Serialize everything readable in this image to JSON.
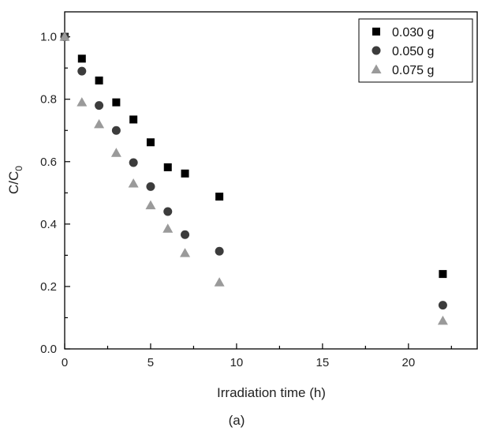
{
  "chart_data": {
    "type": "scatter",
    "xlabel": "Irradiation time (h)",
    "ylabel_main": "C/C",
    "ylabel_sub": "0",
    "caption": "(a)",
    "xlim": [
      0,
      24
    ],
    "ylim": [
      0,
      1.08
    ],
    "x_ticks": [
      0,
      5,
      10,
      15,
      20
    ],
    "x_tick_labels": [
      "0",
      "5",
      "10",
      "15",
      "20"
    ],
    "y_ticks": [
      0,
      0.2,
      0.4,
      0.6,
      0.8,
      1.0
    ],
    "y_tick_labels": [
      "0.0",
      "0.2",
      "0.4",
      "0.6",
      "0.8",
      "1.0"
    ],
    "grid": false,
    "legend_position": "top-right",
    "series": [
      {
        "name": "0.030 g",
        "marker": "square",
        "color": "#000000",
        "x": [
          0,
          1,
          2,
          3,
          4,
          5,
          6,
          7,
          9,
          22
        ],
        "y": [
          1.0,
          0.93,
          0.86,
          0.79,
          0.735,
          0.662,
          0.582,
          0.562,
          0.488,
          0.24
        ]
      },
      {
        "name": "0.050 g",
        "marker": "circle",
        "color": "#3c3c3c",
        "x": [
          0,
          1,
          2,
          3,
          4,
          5,
          6,
          7,
          9,
          22
        ],
        "y": [
          1.0,
          0.89,
          0.78,
          0.7,
          0.597,
          0.52,
          0.44,
          0.366,
          0.313,
          0.14
        ]
      },
      {
        "name": "0.075 g",
        "marker": "triangle",
        "color": "#9a9a9a",
        "x": [
          0,
          1,
          2,
          3,
          4,
          5,
          6,
          7,
          9,
          22
        ],
        "y": [
          1.0,
          0.79,
          0.72,
          0.628,
          0.53,
          0.46,
          0.385,
          0.307,
          0.213,
          0.09
        ]
      }
    ]
  }
}
